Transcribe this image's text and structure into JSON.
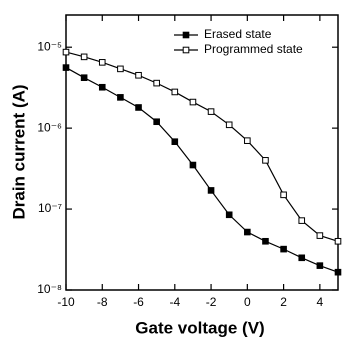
{
  "chart_data": {
    "type": "line",
    "xlabel": "Gate voltage (V)",
    "ylabel": "Drain current (A)",
    "x": [
      -10,
      -9,
      -8,
      -7,
      -6,
      -5,
      -4,
      -3,
      -2,
      -1,
      0,
      1,
      2,
      3,
      4,
      5
    ],
    "series": [
      {
        "name": "Erased state",
        "color": "#000000",
        "marker": "filled-square",
        "values": [
          5.6e-06,
          4.2e-06,
          3.2e-06,
          2.4e-06,
          1.8e-06,
          1.2e-06,
          6.8e-07,
          3.5e-07,
          1.7e-07,
          8.5e-08,
          5.2e-08,
          4e-08,
          3.2e-08,
          2.5e-08,
          2e-08,
          1.66e-08
        ]
      },
      {
        "name": "Programmed state",
        "color": "#000000",
        "marker": "open-square",
        "values": [
          8.7e-06,
          7.6e-06,
          6.5e-06,
          5.4e-06,
          4.5e-06,
          3.6e-06,
          2.8e-06,
          2.1e-06,
          1.6e-06,
          1.1e-06,
          7e-07,
          4e-07,
          1.5e-07,
          7.2e-08,
          4.7e-08,
          4e-08
        ]
      }
    ],
    "xlim": [
      -10,
      5
    ],
    "xticks": [
      -10,
      -8,
      -6,
      -4,
      -2,
      0,
      2,
      4
    ],
    "ylim": [
      1e-08,
      2.5e-05
    ],
    "log_y": true,
    "yticks": [
      {
        "value": 1e-08,
        "label": "10⁻⁸"
      },
      {
        "value": 1e-07,
        "label": "10⁻⁷"
      },
      {
        "value": 1e-06,
        "label": "10⁻⁶"
      },
      {
        "value": 1e-05,
        "label": "10⁻⁵"
      }
    ],
    "legend": "upper-right",
    "grid": false
  }
}
